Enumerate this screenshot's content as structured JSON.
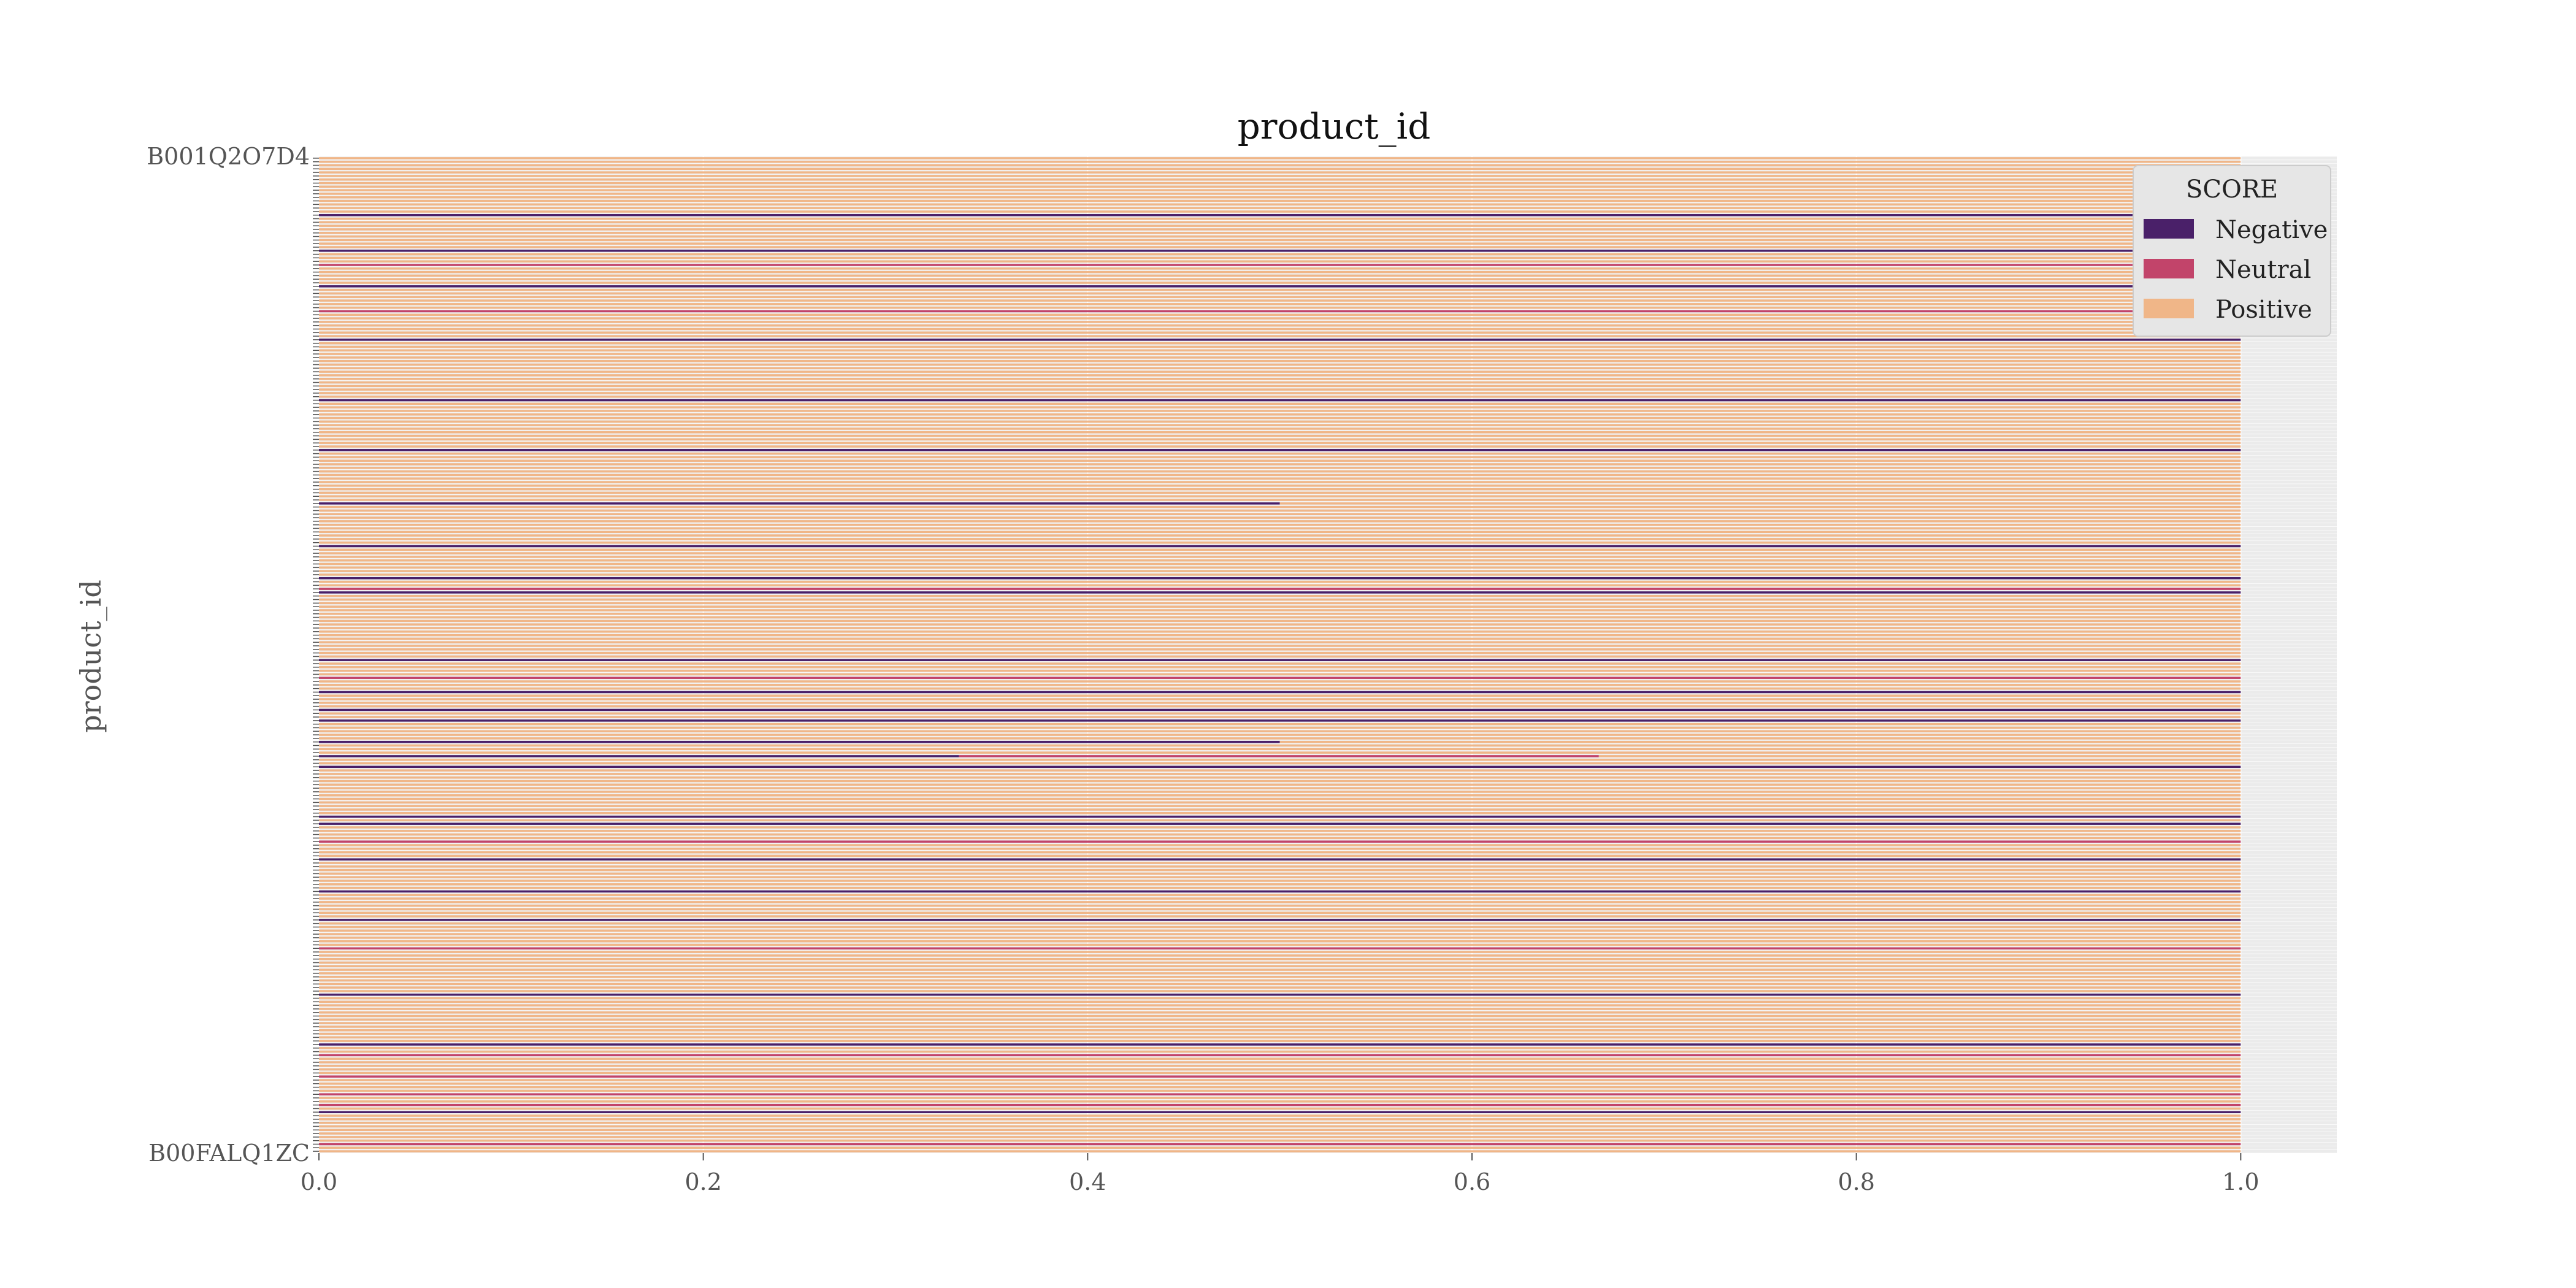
{
  "chart_data": {
    "type": "bar",
    "orientation": "horizontal",
    "stacked": true,
    "title": "product_id",
    "xlabel": "",
    "ylabel": "product_id",
    "xlim": [
      0,
      1.05
    ],
    "xticks": [
      0.0,
      0.2,
      0.4,
      0.6,
      0.8,
      1.0
    ],
    "xtick_labels": [
      "0.0",
      "0.2",
      "0.4",
      "0.6",
      "0.8",
      "1.0"
    ],
    "grid": true,
    "legend": {
      "title": "SCORE",
      "placement": "top-right",
      "entries": [
        "Negative",
        "Neutral",
        "Positive"
      ]
    },
    "colors": {
      "Negative": "#4a2069",
      "Neutral": "#c2446a",
      "Positive": "#f0b688",
      "plot_background": "#ebebeb",
      "grid": "#ffffff"
    },
    "visible_category_labels": [
      "B001Q2O7D4",
      "B00FALQ1ZC"
    ],
    "category_count": 280,
    "series": [
      {
        "name": "Negative",
        "notable_rows": [
          {
            "row": 16,
            "value": 1.0
          },
          {
            "row": 26,
            "value": 1.0
          },
          {
            "row": 36,
            "value": 1.0
          },
          {
            "row": 51,
            "value": 1.0
          },
          {
            "row": 68,
            "value": 1.0
          },
          {
            "row": 82,
            "value": 1.0
          },
          {
            "row": 97,
            "value": 0.5
          },
          {
            "row": 109,
            "value": 1.0
          },
          {
            "row": 118,
            "value": 1.0
          },
          {
            "row": 122,
            "value": 1.0
          },
          {
            "row": 141,
            "value": 1.0
          },
          {
            "row": 150,
            "value": 1.0
          },
          {
            "row": 155,
            "value": 1.0
          },
          {
            "row": 158,
            "value": 1.0
          },
          {
            "row": 164,
            "value": 0.5
          },
          {
            "row": 168,
            "value": 0.333
          },
          {
            "row": 171,
            "value": 1.0
          },
          {
            "row": 185,
            "value": 1.0
          },
          {
            "row": 187,
            "value": 1.0
          },
          {
            "row": 197,
            "value": 1.0
          },
          {
            "row": 206,
            "value": 1.0
          },
          {
            "row": 214,
            "value": 1.0
          },
          {
            "row": 235,
            "value": 1.0
          },
          {
            "row": 249,
            "value": 1.0
          },
          {
            "row": 268,
            "value": 1.0
          }
        ]
      },
      {
        "name": "Neutral",
        "notable_rows": [
          {
            "row": 30,
            "value": 1.0
          },
          {
            "row": 43,
            "value": 1.0
          },
          {
            "row": 121,
            "value": 1.0
          },
          {
            "row": 146,
            "value": 1.0
          },
          {
            "row": 168,
            "value": 0.333
          },
          {
            "row": 192,
            "value": 1.0
          },
          {
            "row": 222,
            "value": 1.0
          },
          {
            "row": 252,
            "value": 1.0
          },
          {
            "row": 258,
            "value": 1.0
          },
          {
            "row": 263,
            "value": 1.0
          },
          {
            "row": 266,
            "value": 1.0
          },
          {
            "row": 277,
            "value": 1.0
          }
        ]
      },
      {
        "name": "Positive",
        "default_value": 1.0
      }
    ]
  }
}
